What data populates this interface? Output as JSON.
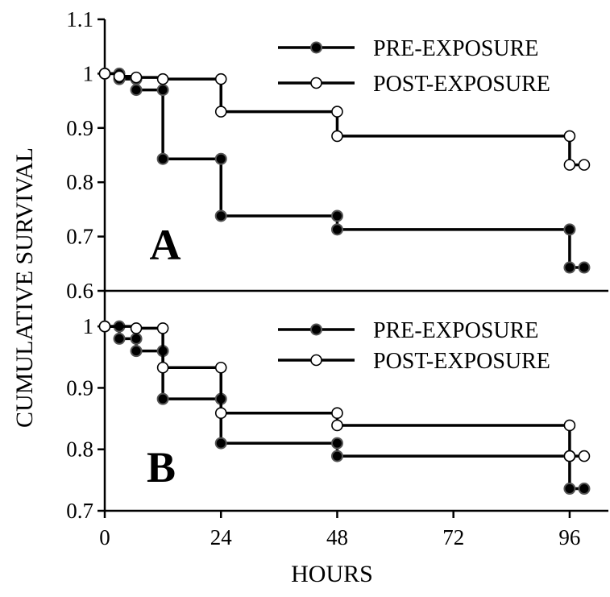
{
  "chart_data": [
    {
      "type": "line",
      "step": true,
      "panel_label": "A",
      "xlabel": "HOURS",
      "ylabel": "CUMULATIVE  SURVIVAL",
      "xlim": [
        0,
        104
      ],
      "ylim": [
        0.6,
        1.1
      ],
      "xticks": [
        "0",
        "24",
        "48",
        "72",
        "96"
      ],
      "xtick_values": [
        0,
        24,
        48,
        72,
        96
      ],
      "yticks": [
        "0.6",
        "0.7",
        "0.8",
        "0.9",
        "1",
        "1.1"
      ],
      "ytick_values": [
        0.6,
        0.7,
        0.8,
        0.9,
        1.0,
        1.1
      ],
      "legend_position": "top-right",
      "series": [
        {
          "name": "PRE-EXPOSURE",
          "marker": "filled-circle",
          "points": [
            [
              0,
              1.0
            ],
            [
              3,
              1.0
            ],
            [
              3,
              0.99
            ],
            [
              6.5,
              0.99
            ],
            [
              6.5,
              0.97
            ],
            [
              12,
              0.97
            ],
            [
              12,
              0.843
            ],
            [
              24,
              0.843
            ],
            [
              24,
              0.738
            ],
            [
              48,
              0.738
            ],
            [
              48,
              0.713
            ],
            [
              96,
              0.713
            ],
            [
              96,
              0.643
            ],
            [
              99,
              0.643
            ]
          ]
        },
        {
          "name": "POST-EXPOSURE",
          "marker": "open-circle",
          "points": [
            [
              0,
              1.0
            ],
            [
              3,
              0.995
            ],
            [
              6.5,
              0.993
            ],
            [
              12,
              0.99
            ],
            [
              24,
              0.99
            ],
            [
              24,
              0.93
            ],
            [
              48,
              0.93
            ],
            [
              48,
              0.885
            ],
            [
              96,
              0.885
            ],
            [
              96,
              0.832
            ],
            [
              99,
              0.832
            ]
          ]
        }
      ]
    },
    {
      "type": "line",
      "step": true,
      "panel_label": "B",
      "xlabel": "HOURS",
      "ylabel": "CUMULATIVE  SURVIVAL",
      "xlim": [
        0,
        104
      ],
      "ylim": [
        0.7,
        1.05
      ],
      "xticks": [
        "0",
        "24",
        "48",
        "72",
        "96"
      ],
      "xtick_values": [
        0,
        24,
        48,
        72,
        96
      ],
      "yticks": [
        "0.7",
        "0.8",
        "0.9",
        "1"
      ],
      "ytick_values": [
        0.7,
        0.8,
        0.9,
        1.0
      ],
      "legend_position": "top-right",
      "series": [
        {
          "name": "PRE-EXPOSURE",
          "marker": "filled-circle",
          "points": [
            [
              0,
              1.0
            ],
            [
              3,
              1.0
            ],
            [
              3,
              0.98
            ],
            [
              6.5,
              0.98
            ],
            [
              6.5,
              0.96
            ],
            [
              12,
              0.96
            ],
            [
              12,
              0.882
            ],
            [
              24,
              0.882
            ],
            [
              24,
              0.81
            ],
            [
              48,
              0.81
            ],
            [
              48,
              0.789
            ],
            [
              96,
              0.789
            ],
            [
              96,
              0.736
            ],
            [
              99,
              0.736
            ]
          ]
        },
        {
          "name": "POST-EXPOSURE",
          "marker": "open-circle",
          "points": [
            [
              0,
              1.0
            ],
            [
              6.5,
              0.997
            ],
            [
              12,
              0.997
            ],
            [
              12,
              0.933
            ],
            [
              24,
              0.933
            ],
            [
              24,
              0.859
            ],
            [
              48,
              0.859
            ],
            [
              48,
              0.839
            ],
            [
              96,
              0.839
            ],
            [
              96,
              0.789
            ],
            [
              99,
              0.789
            ]
          ]
        }
      ]
    }
  ]
}
